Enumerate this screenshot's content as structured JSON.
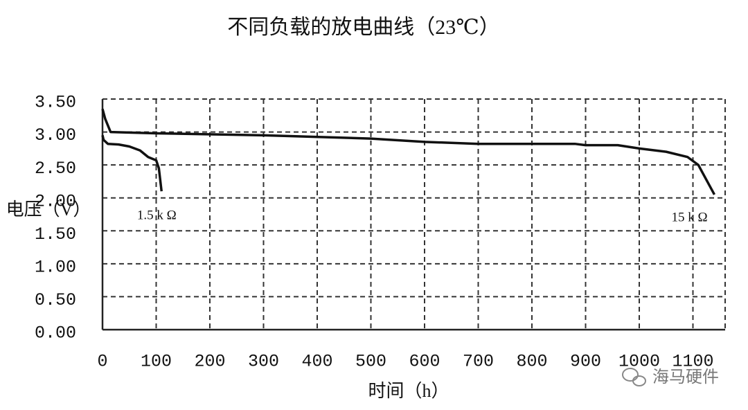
{
  "chart_data": {
    "type": "line",
    "title": "不同负载的放电曲线（23℃）",
    "x_label": "时间（h）",
    "y_label": "电压（V）",
    "watermark": "海马硬件",
    "xlim": [
      0,
      1160
    ],
    "xticks": [
      0,
      100,
      200,
      300,
      400,
      500,
      600,
      700,
      800,
      900,
      1000,
      1100
    ],
    "ylim": [
      0,
      3.5
    ],
    "yticks": [
      {
        "value": 0,
        "label": "0.00"
      },
      {
        "value": 0.5,
        "label": "0.50"
      },
      {
        "value": 1,
        "label": "1.00"
      },
      {
        "value": 1.5,
        "label": "1.50"
      },
      {
        "value": 2,
        "label": "2.00"
      },
      {
        "value": 2.5,
        "label": "2.50"
      },
      {
        "value": 3,
        "label": "3.00"
      },
      {
        "value": 3.5,
        "label": "3.50"
      }
    ],
    "grid": true,
    "series": [
      {
        "name": "1.5 k Ω",
        "color": "#111111",
        "x": [
          0,
          2,
          10,
          30,
          50,
          70,
          85,
          100,
          105,
          110
        ],
        "values": [
          2.95,
          2.88,
          2.82,
          2.81,
          2.78,
          2.72,
          2.62,
          2.57,
          2.45,
          2.1
        ]
      },
      {
        "name": "15 k Ω",
        "color": "#111111",
        "x": [
          0,
          5,
          15,
          100,
          300,
          500,
          600,
          700,
          880,
          900,
          960,
          1000,
          1050,
          1090,
          1110,
          1130,
          1140
        ],
        "values": [
          3.35,
          3.2,
          3.0,
          2.98,
          2.95,
          2.9,
          2.85,
          2.82,
          2.82,
          2.8,
          2.8,
          2.75,
          2.7,
          2.62,
          2.5,
          2.2,
          2.05
        ]
      }
    ]
  }
}
